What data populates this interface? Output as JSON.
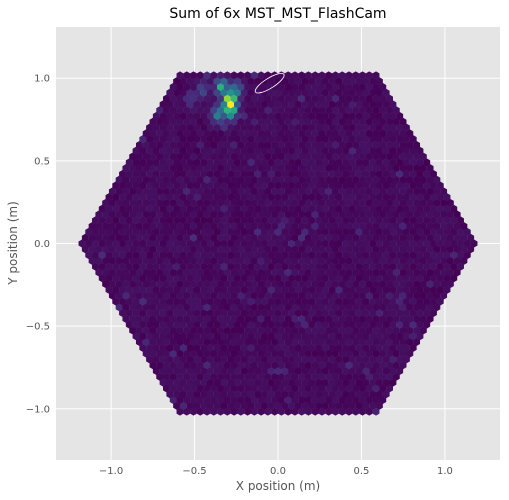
{
  "chart_data": {
    "type": "heatmap",
    "title": "Sum of 6x MST_MST_FlashCam",
    "xlabel": "X position (m)",
    "ylabel": "Y position (m)",
    "xlim": [
      -1.33,
      1.33
    ],
    "ylim": [
      -1.31,
      1.31
    ],
    "xticks": [
      -1.0,
      -0.5,
      0.0,
      0.5,
      1.0
    ],
    "xtick_labels": [
      "−1.0",
      "−0.5",
      "0.0",
      "0.5",
      "1.0"
    ],
    "yticks": [
      -1.0,
      -0.5,
      0.0,
      0.5,
      1.0
    ],
    "ytick_labels": [
      "−1.0",
      "−0.5",
      "0.0",
      "0.5",
      "1.0"
    ],
    "grid": true,
    "background": "#e5e5e5",
    "colormap": "viridis",
    "camera": {
      "shape": "hexagonal",
      "pixel_layout": "hexagonal",
      "half_width_x": 1.2,
      "half_height_y": 1.04,
      "top_edge_x_range": [
        -0.6,
        0.6
      ]
    },
    "hotspots": [
      {
        "x": -0.29,
        "y": 0.86,
        "value": 1.0
      },
      {
        "x": -0.34,
        "y": 0.95,
        "value": 0.55
      },
      {
        "x": -0.28,
        "y": 0.8,
        "value": 0.55
      },
      {
        "x": -0.36,
        "y": 0.78,
        "value": 0.45
      },
      {
        "x": -0.25,
        "y": 0.93,
        "value": 0.4
      },
      {
        "x": -0.45,
        "y": 0.93,
        "value": 0.2
      },
      {
        "x": -0.52,
        "y": 0.88,
        "value": 0.15
      }
    ],
    "hillas_ellipse": {
      "cx": -0.05,
      "cy": 0.97,
      "rx": 0.1,
      "ry": 0.03,
      "angle_deg": 32,
      "color": "#ffffff"
    }
  }
}
